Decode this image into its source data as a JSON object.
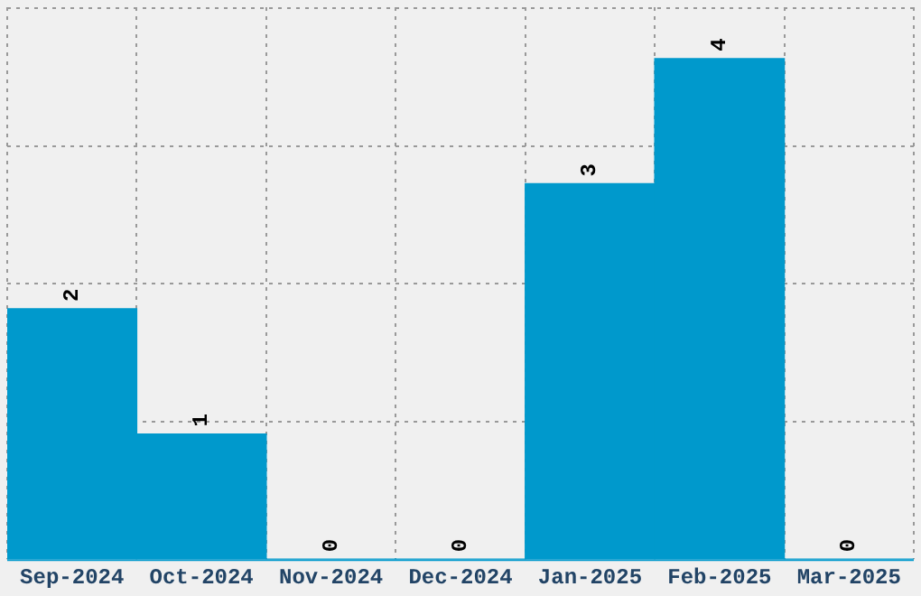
{
  "chart_data": {
    "type": "bar",
    "categories": [
      "Sep-2024",
      "Oct-2024",
      "Nov-2024",
      "Dec-2024",
      "Jan-2025",
      "Feb-2025",
      "Mar-2025"
    ],
    "values": [
      2,
      1,
      0,
      0,
      3,
      4,
      0
    ],
    "color": "#0099cc",
    "ylim": [
      0,
      4.41
    ],
    "yticks": [
      {
        "value": 1.1,
        "label": null
      },
      {
        "value": 2.2,
        "label": null
      },
      {
        "value": 3.3,
        "label": null
      },
      {
        "value": 4.4,
        "label": null
      }
    ],
    "tick_labels": "x",
    "grid": true,
    "legend": false,
    "data_labels": true
  }
}
